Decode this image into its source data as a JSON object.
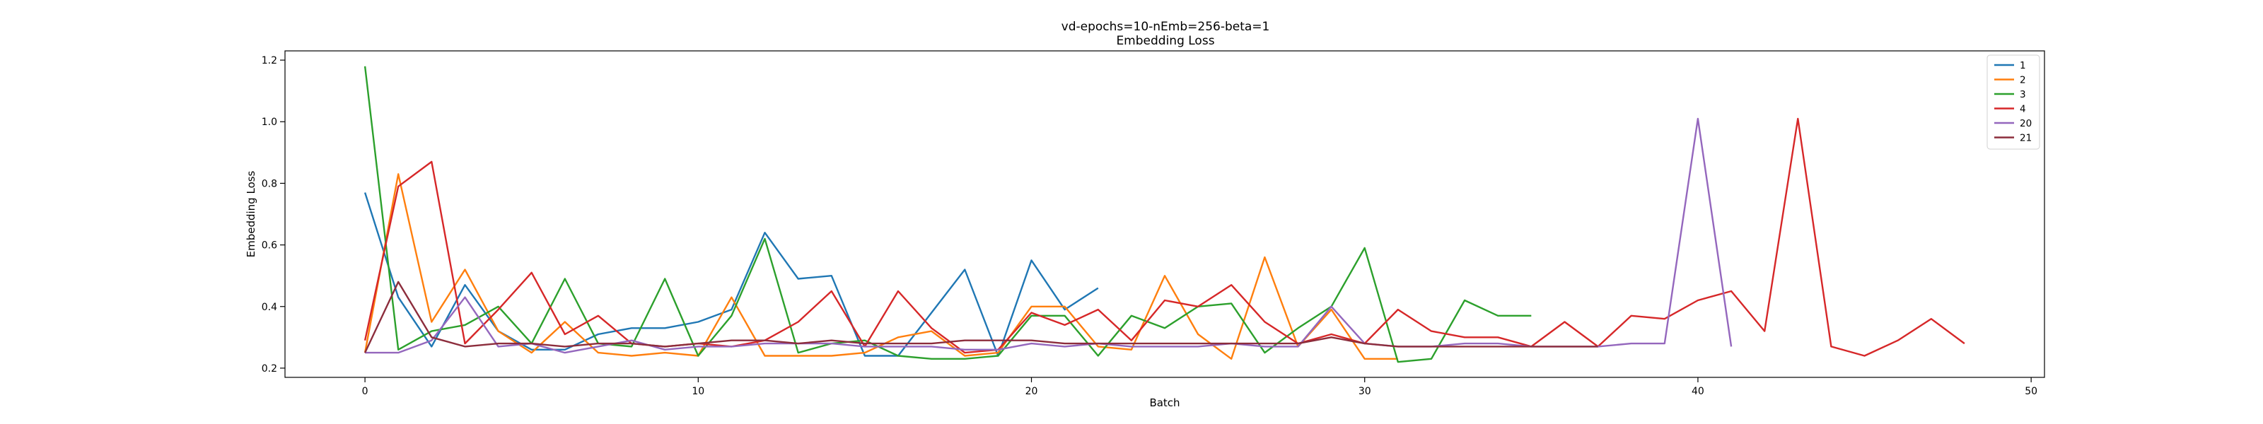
{
  "chart_data": {
    "type": "line",
    "title": "vd-epochs=10-nEmb=256-beta=1",
    "subtitle": "Embedding Loss",
    "xlabel": "Batch",
    "ylabel": "Embedding Loss",
    "xlim": [
      -2.4,
      50.4
    ],
    "ylim": [
      0.17,
      1.23
    ],
    "xticks": [
      0,
      10,
      20,
      30,
      40,
      50
    ],
    "yticks": [
      0.2,
      0.4,
      0.6,
      0.8,
      1.0,
      1.2
    ],
    "ytick_labels": [
      "0.2",
      "0.4",
      "0.6",
      "0.8",
      "1.0",
      "1.2"
    ],
    "grid": false,
    "legend_position": "top-right",
    "series": [
      {
        "name": "1",
        "color": "#1f77b4",
        "values": [
          0.77,
          0.43,
          0.27,
          0.47,
          0.32,
          0.26,
          0.26,
          0.31,
          0.33,
          0.33,
          0.35,
          0.39,
          0.64,
          0.49,
          0.5,
          0.24,
          0.24,
          0.38,
          0.52,
          0.24,
          0.55,
          0.39,
          0.46
        ]
      },
      {
        "name": "2",
        "color": "#ff7f0e",
        "values": [
          0.25,
          0.83,
          0.35,
          0.52,
          0.32,
          0.25,
          0.35,
          0.25,
          0.24,
          0.25,
          0.24,
          0.43,
          0.24,
          0.24,
          0.24,
          0.25,
          0.3,
          0.32,
          0.24,
          0.25,
          0.4,
          0.4,
          0.27,
          0.26,
          0.5,
          0.31,
          0.23,
          0.56,
          0.27,
          0.39,
          0.23,
          0.23
        ]
      },
      {
        "name": "3",
        "color": "#2ca02c",
        "values": [
          1.18,
          0.26,
          0.32,
          0.34,
          0.4,
          0.28,
          0.49,
          0.28,
          0.27,
          0.49,
          0.24,
          0.37,
          0.62,
          0.25,
          0.28,
          0.29,
          0.24,
          0.23,
          0.23,
          0.24,
          0.37,
          0.37,
          0.24,
          0.37,
          0.33,
          0.4,
          0.41,
          0.25,
          0.33,
          0.4,
          0.59,
          0.22,
          0.23,
          0.42,
          0.37,
          0.37
        ]
      },
      {
        "name": "4",
        "color": "#d62728",
        "values": [
          0.29,
          0.79,
          0.87,
          0.28,
          0.39,
          0.51,
          0.31,
          0.37,
          0.28,
          0.27,
          0.28,
          0.27,
          0.29,
          0.35,
          0.45,
          0.27,
          0.45,
          0.33,
          0.25,
          0.26,
          0.38,
          0.34,
          0.39,
          0.29,
          0.42,
          0.4,
          0.47,
          0.35,
          0.28,
          0.31,
          0.28,
          0.39,
          0.32,
          0.3,
          0.3,
          0.27,
          0.35,
          0.27,
          0.37,
          0.36,
          0.42,
          0.45,
          0.32,
          1.01,
          0.27,
          0.24,
          0.29,
          0.36,
          0.28
        ]
      },
      {
        "name": "20",
        "color": "#9467bd",
        "values": [
          0.25,
          0.25,
          0.29,
          0.43,
          0.27,
          0.28,
          0.25,
          0.27,
          0.29,
          0.26,
          0.27,
          0.27,
          0.28,
          0.28,
          0.28,
          0.27,
          0.27,
          0.27,
          0.26,
          0.26,
          0.28,
          0.27,
          0.28,
          0.27,
          0.27,
          0.27,
          0.28,
          0.27,
          0.27,
          0.4,
          0.28,
          0.27,
          0.27,
          0.28,
          0.28,
          0.27,
          0.27,
          0.27,
          0.28,
          0.28,
          1.01,
          0.27
        ]
      },
      {
        "name": "21",
        "color": "#8c2d3c",
        "values": [
          0.25,
          0.48,
          0.3,
          0.27,
          0.28,
          0.28,
          0.27,
          0.28,
          0.28,
          0.27,
          0.28,
          0.29,
          0.29,
          0.28,
          0.29,
          0.28,
          0.28,
          0.28,
          0.29,
          0.29,
          0.29,
          0.28,
          0.28,
          0.28,
          0.28,
          0.28,
          0.28,
          0.28,
          0.28,
          0.3,
          0.28,
          0.27,
          0.27,
          0.27,
          0.27,
          0.27,
          0.27,
          0.27
        ]
      }
    ]
  }
}
